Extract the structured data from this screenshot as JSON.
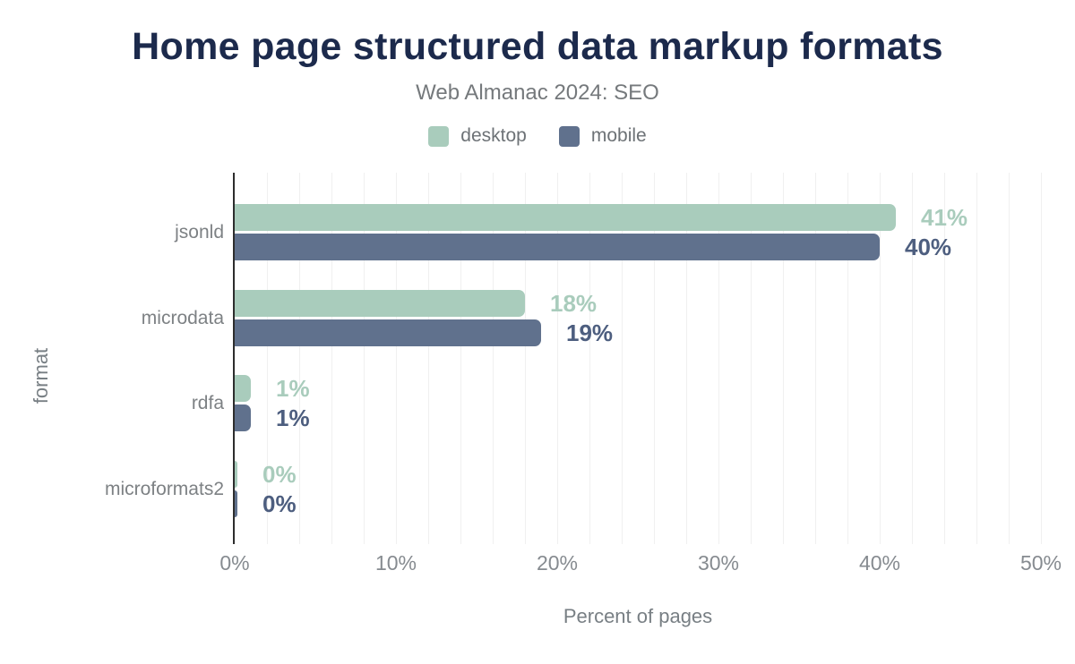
{
  "header": {
    "title": "Home page structured data markup formats",
    "subtitle": "Web Almanac 2024: SEO"
  },
  "legend": [
    {
      "label": "desktop",
      "color": "#a9ccbc"
    },
    {
      "label": "mobile",
      "color": "#60718d"
    }
  ],
  "chart_data": {
    "type": "bar",
    "orientation": "horizontal",
    "title": "Home page structured data markup formats",
    "subtitle": "Web Almanac 2024: SEO",
    "categories": [
      "jsonld",
      "microdata",
      "rdfa",
      "microformats2"
    ],
    "series": [
      {
        "name": "desktop",
        "color": "#a9ccbc",
        "label_color": "#a9ccbc",
        "values": [
          41,
          18,
          1,
          0
        ],
        "labels": [
          "41%",
          "18%",
          "1%",
          "0%"
        ]
      },
      {
        "name": "mobile",
        "color": "#60718d",
        "label_color": "#4d5e7f",
        "values": [
          40,
          19,
          1,
          0
        ],
        "labels": [
          "40%",
          "19%",
          "1%",
          "0%"
        ]
      }
    ],
    "xlabel": "Percent of pages",
    "ylabel": "format",
    "xlim": [
      0,
      50
    ],
    "xticks": [
      "0%",
      "10%",
      "20%",
      "30%",
      "40%",
      "50%"
    ],
    "xtick_values": [
      0,
      10,
      20,
      30,
      40,
      50
    ],
    "grid": "vertical",
    "grid_step_pct": 2,
    "legend_position": "top"
  },
  "colors": {
    "title": "#1c2a4c",
    "subtitle": "#75797c",
    "axis_line": "#2d2d2d",
    "gridline": "#f0f0f0",
    "tick_label": "#868b90",
    "category_label": "#7d8184",
    "axis_title": "#787f84",
    "background": "#ffffff"
  }
}
